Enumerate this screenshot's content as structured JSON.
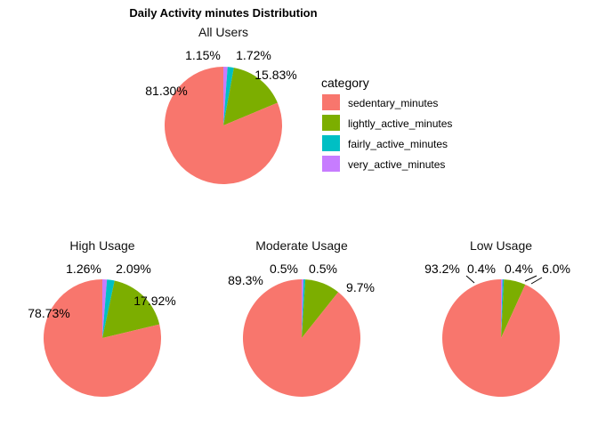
{
  "title": "Daily Activity minutes Distribution",
  "chart_data": [
    {
      "type": "pie",
      "title": "All Users",
      "categories": [
        "sedentary_minutes",
        "lightly_active_minutes",
        "fairly_active_minutes",
        "very_active_minutes"
      ],
      "values": [
        81.3,
        15.83,
        1.72,
        1.15
      ],
      "labels": [
        "81.30%",
        "15.83%",
        "1.72%",
        "1.15%"
      ]
    },
    {
      "type": "pie",
      "title": "High Usage",
      "categories": [
        "sedentary_minutes",
        "lightly_active_minutes",
        "fairly_active_minutes",
        "very_active_minutes"
      ],
      "values": [
        78.73,
        17.92,
        2.09,
        1.26
      ],
      "labels": [
        "78.73%",
        "17.92%",
        "2.09%",
        "1.26%"
      ]
    },
    {
      "type": "pie",
      "title": "Moderate Usage",
      "categories": [
        "sedentary_minutes",
        "lightly_active_minutes",
        "fairly_active_minutes",
        "very_active_minutes"
      ],
      "values": [
        89.3,
        9.7,
        0.5,
        0.5
      ],
      "labels": [
        "89.3%",
        "9.7%",
        "0.5%",
        "0.5%"
      ]
    },
    {
      "type": "pie",
      "title": "Low Usage",
      "categories": [
        "sedentary_minutes",
        "lightly_active_minutes",
        "fairly_active_minutes",
        "very_active_minutes"
      ],
      "values": [
        93.2,
        6.0,
        0.4,
        0.4
      ],
      "labels": [
        "93.2%",
        "6.0%",
        "0.4%",
        "0.4%"
      ]
    }
  ],
  "legend": {
    "title": "category",
    "placement": "right of top pie",
    "items": [
      "sedentary_minutes",
      "lightly_active_minutes",
      "fairly_active_minutes",
      "very_active_minutes"
    ]
  },
  "colors": {
    "sedentary_minutes": "#F8766D",
    "lightly_active_minutes": "#7CAE00",
    "fairly_active_minutes": "#00BFC4",
    "very_active_minutes": "#C77CFF"
  }
}
